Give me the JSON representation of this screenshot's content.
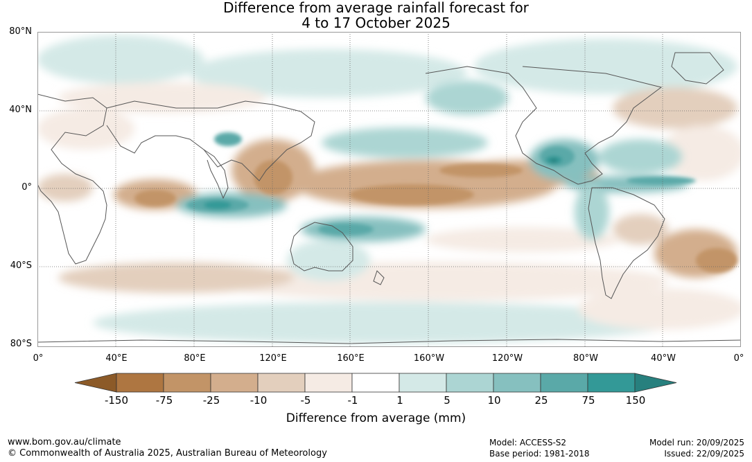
{
  "title": {
    "line1": "Difference from average rainfall forecast for",
    "line2": "4 to 17 October 2025"
  },
  "map": {
    "lat_labels": [
      "80°N",
      "40°N",
      "0°",
      "40°S",
      "80°S"
    ],
    "lon_labels": [
      "0°",
      "40°E",
      "80°E",
      "120°E",
      "160°E",
      "160°W",
      "120°W",
      "80°W",
      "40°W",
      "0°"
    ]
  },
  "legend": {
    "title": "Difference from average (mm)",
    "tick_labels": [
      "-150",
      "-75",
      "-25",
      "-10",
      "-5",
      "-1",
      "1",
      "5",
      "10",
      "25",
      "75",
      "150"
    ],
    "colors": [
      "#8c5a28",
      "#ae7641",
      "#c29467",
      "#d3ae8d",
      "#e3cfbd",
      "#f5ebe4",
      "#ffffff",
      "#d4e9e7",
      "#acd5d3",
      "#86c0bf",
      "#5aa9a8",
      "#339997",
      "#27807e"
    ]
  },
  "footer": {
    "url": "www.bom.gov.au/climate",
    "copyright": "© Commonwealth of Australia 2025, Australian Bureau of Meteorology",
    "model": "Model: ACCESS-S2",
    "base_period": "Base period: 1981-2018",
    "model_run": "Model run: 20/09/2025",
    "issued": "Issued: 22/09/2025"
  }
}
